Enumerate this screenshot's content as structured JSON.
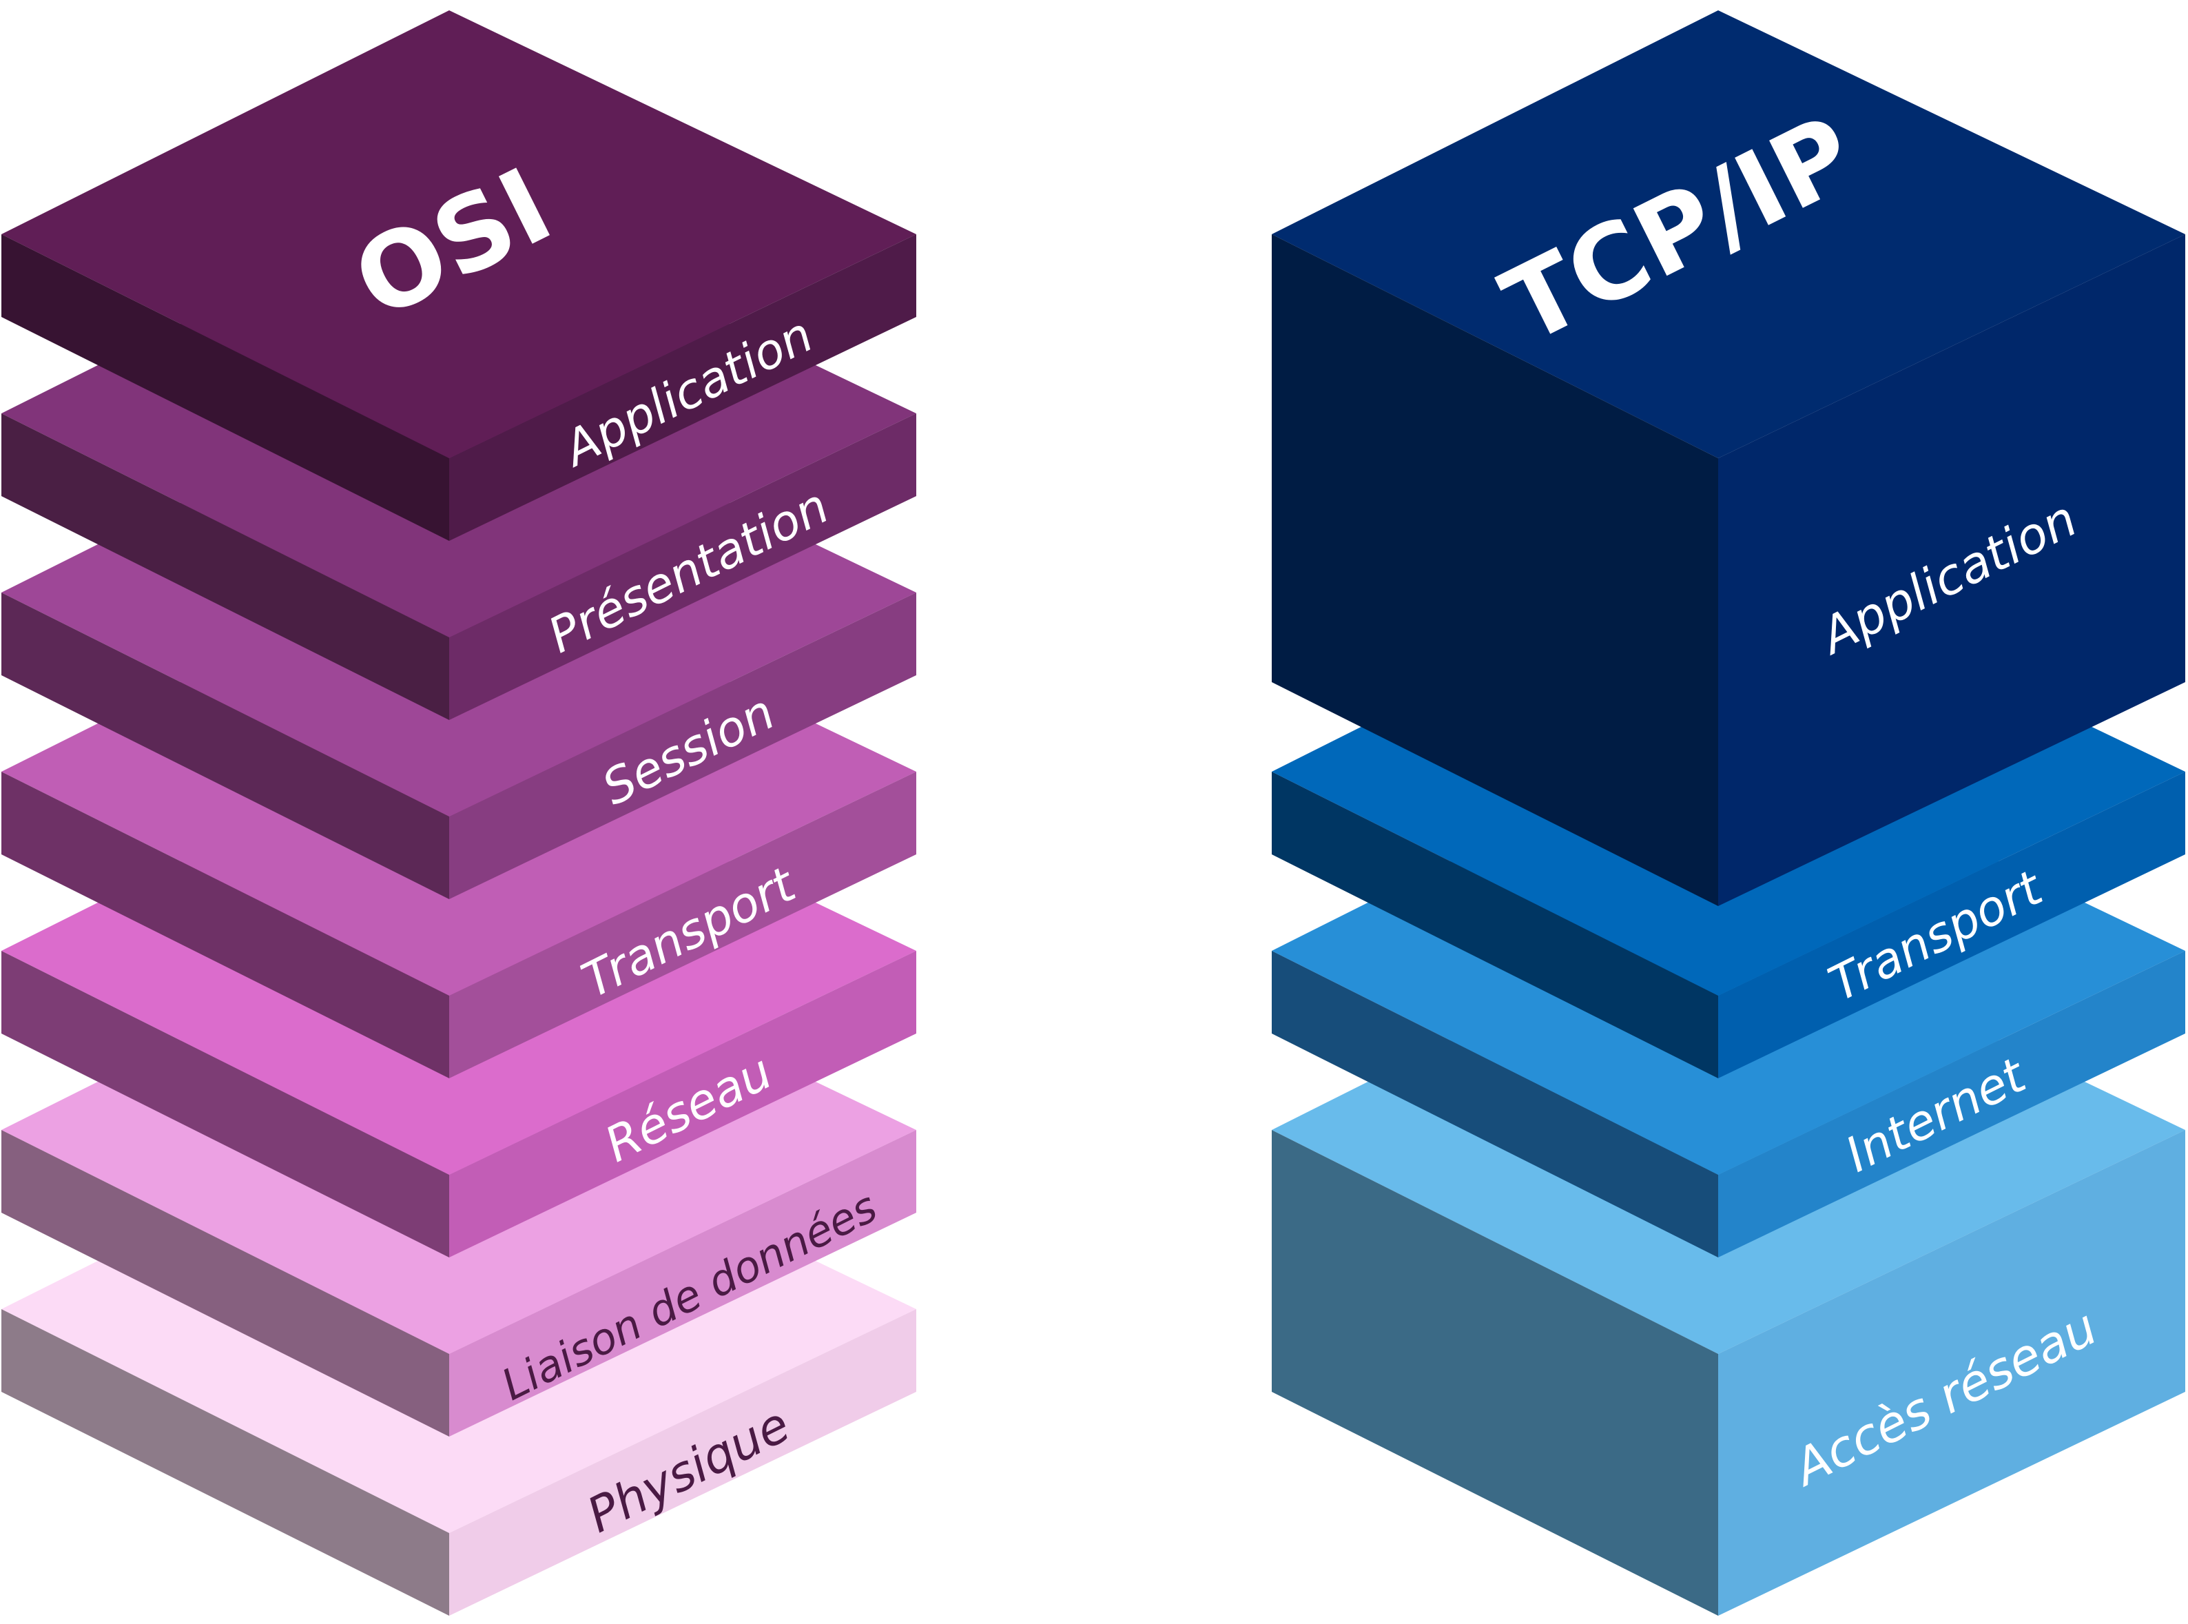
{
  "osi": {
    "title": "OSI",
    "layers": [
      {
        "label": "Application",
        "top": "#601e56",
        "left": "#371332",
        "right": "#4f1b49",
        "text_color": "#ffffff"
      },
      {
        "label": "Présentation",
        "top": "#81347a",
        "left": "#4a1f44",
        "right": "#6d2b67",
        "text_color": "#ffffff"
      },
      {
        "label": "Session",
        "top": "#9e4797",
        "left": "#5c2856",
        "right": "#873d81",
        "text_color": "#ffffff"
      },
      {
        "label": "Transport",
        "top": "#c05eb5",
        "left": "#6e3166",
        "right": "#a34f9a",
        "text_color": "#ffffff"
      },
      {
        "label": "Réseau",
        "top": "#db6ccc",
        "left": "#7d3d75",
        "right": "#c25db6",
        "text_color": "#ffffff"
      },
      {
        "label": "Liaison de données",
        "top": "#eca1e3",
        "left": "#86607f",
        "right": "#d88bcf",
        "text_color": "#4a1a44"
      },
      {
        "label": "Physique",
        "top": "#fcdbf6",
        "left": "#8d7b89",
        "right": "#f0cce9",
        "text_color": "#4a1a44"
      }
    ]
  },
  "tcpip": {
    "title": "TCP/IP",
    "layers": [
      {
        "label": "Application",
        "top": "#002b6f",
        "left": "#001c44",
        "right": "#00276a",
        "text_color": "#ffffff"
      },
      {
        "label": "Transport",
        "top": "#0068ba",
        "left": "#003663",
        "right": "#005fae",
        "text_color": "#ffffff"
      },
      {
        "label": "Internet",
        "top": "#278fd7",
        "left": "#174d7a",
        "right": "#2384ca",
        "text_color": "#ffffff"
      },
      {
        "label": "Accès réseau",
        "top": "#68bbeb",
        "left": "#3b6a86",
        "right": "#5fafe1",
        "text_color": "#ffffff"
      }
    ]
  }
}
